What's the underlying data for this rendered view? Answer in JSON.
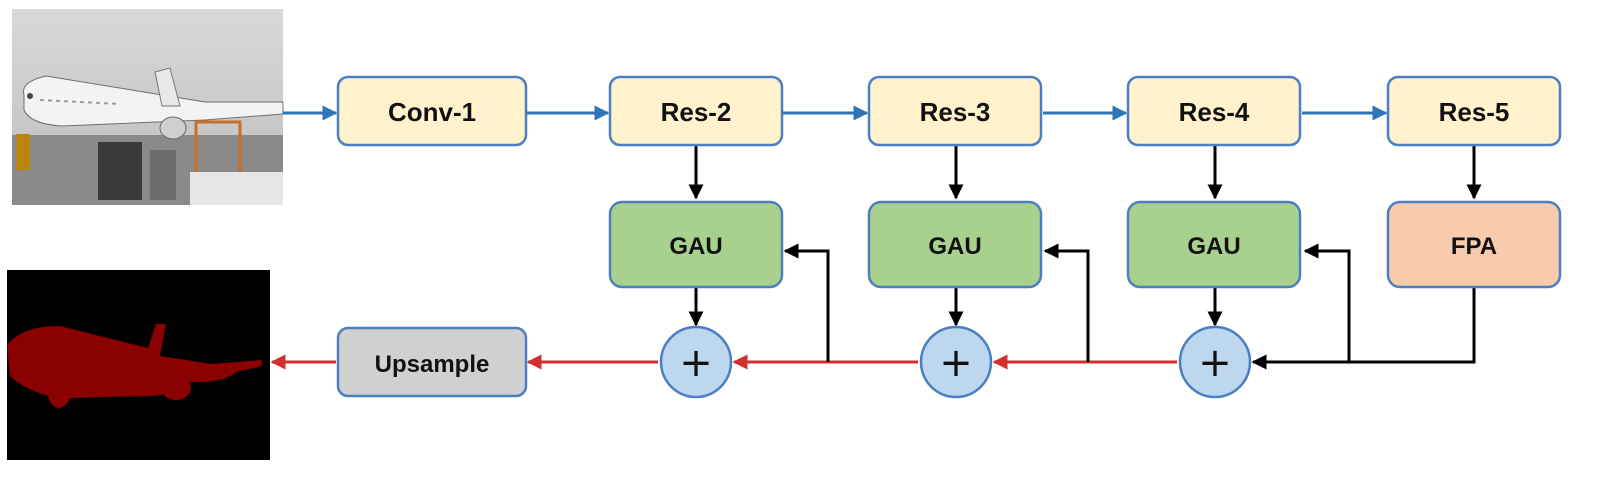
{
  "nodes": {
    "conv1": "Conv-1",
    "res2": "Res-2",
    "res3": "Res-3",
    "res4": "Res-4",
    "res5": "Res-5",
    "gau1": "GAU",
    "gau2": "GAU",
    "gau3": "GAU",
    "fpa": "FPA",
    "upsample": "Upsample"
  },
  "sum_symbol": "+",
  "colors": {
    "encoder_fill": "#fff2cc",
    "gau_fill": "#a9d18e",
    "fpa_fill": "#f8cbad",
    "upsample_fill": "#d0d0d0",
    "sum_fill": "#bdd7ee",
    "node_border": "#4a7fc1",
    "encoder_flow": "#2e75b6",
    "decoder_flow": "#d32f2f",
    "skip_flow": "#000000"
  },
  "images": {
    "input": "airplane-photo",
    "output": "airplane-segmentation-mask"
  }
}
